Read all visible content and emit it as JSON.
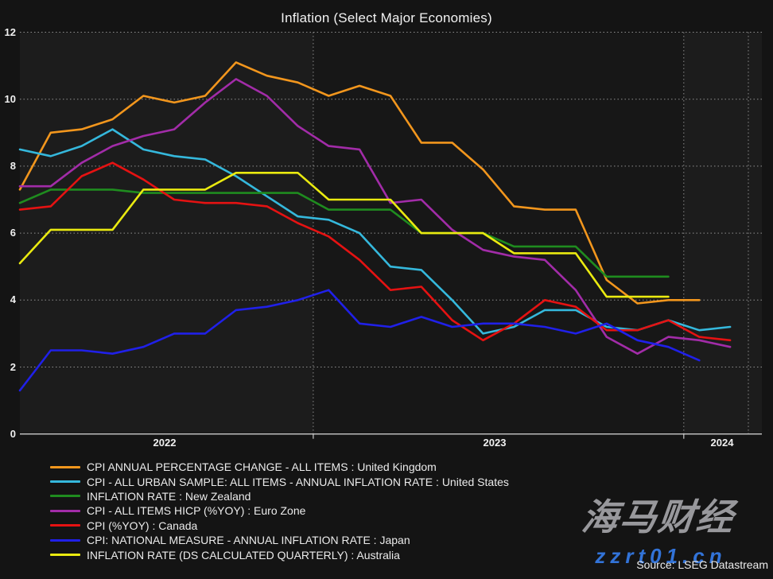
{
  "page": {
    "watermark_brand": "海马财经",
    "watermark_site": "zzrt01.cn",
    "source_note": "Source: LSEG Datastream"
  },
  "chart_data": {
    "type": "line",
    "title": "Inflation (Select Major Economies)",
    "x_start": "2022-03",
    "x_frequency": "monthly",
    "x_tick_labels": [
      "2022",
      "2023",
      "2024"
    ],
    "y_ticks": [
      0,
      2,
      4,
      6,
      8,
      10,
      12
    ],
    "ylim": [
      0,
      12
    ],
    "grid": "dotted",
    "legend_position": "bottom-left",
    "series": [
      {
        "name": "united-kingdom",
        "label": "CPI ANNUAL PERCENTAGE CHANGE - ALL ITEMS : United Kingdom",
        "color": "#F2961D",
        "values": [
          7.3,
          9.0,
          9.1,
          9.4,
          10.1,
          9.9,
          10.1,
          11.1,
          10.7,
          10.5,
          10.1,
          10.4,
          10.1,
          8.7,
          8.7,
          7.9,
          6.8,
          6.7,
          6.7,
          4.6,
          3.9,
          4.0,
          4.0
        ]
      },
      {
        "name": "united-states",
        "label": "CPI - ALL URBAN SAMPLE: ALL ITEMS - ANNUAL INFLATION RATE : United States",
        "color": "#35B8DC",
        "values": [
          8.5,
          8.3,
          8.6,
          9.1,
          8.5,
          8.3,
          8.2,
          7.7,
          7.1,
          6.5,
          6.4,
          6.0,
          5.0,
          4.9,
          4.0,
          3.0,
          3.2,
          3.7,
          3.7,
          3.2,
          3.1,
          3.4,
          3.1,
          3.2
        ]
      },
      {
        "name": "new-zealand",
        "label": "INFLATION RATE : New Zealand",
        "color": "#1F8C1F",
        "values": [
          6.9,
          7.3,
          7.3,
          7.3,
          7.2,
          7.2,
          7.2,
          7.2,
          7.2,
          7.2,
          6.7,
          6.7,
          6.7,
          6.0,
          6.0,
          6.0,
          5.6,
          5.6,
          5.6,
          4.7,
          4.7,
          4.7
        ]
      },
      {
        "name": "euro-zone",
        "label": "CPI - ALL ITEMS HICP (%YOY) : Euro Zone",
        "color": "#A22CA8",
        "values": [
          7.4,
          7.4,
          8.1,
          8.6,
          8.9,
          9.1,
          9.9,
          10.6,
          10.1,
          9.2,
          8.6,
          8.5,
          6.9,
          7.0,
          6.1,
          5.5,
          5.3,
          5.2,
          4.3,
          2.9,
          2.4,
          2.9,
          2.8,
          2.6
        ]
      },
      {
        "name": "canada",
        "label": "CPI (%YOY) : Canada",
        "color": "#E51212",
        "values": [
          6.7,
          6.8,
          7.7,
          8.1,
          7.6,
          7.0,
          6.9,
          6.9,
          6.8,
          6.3,
          5.9,
          5.2,
          4.3,
          4.4,
          3.4,
          2.8,
          3.3,
          4.0,
          3.8,
          3.1,
          3.1,
          3.4,
          2.9,
          2.8
        ]
      },
      {
        "name": "japan",
        "label": "CPI: NATIONAL MEASURE - ANNUAL INFLATION RATE : Japan",
        "color": "#2020E8",
        "values": [
          1.3,
          2.5,
          2.5,
          2.4,
          2.6,
          3.0,
          3.0,
          3.7,
          3.8,
          4.0,
          4.3,
          3.3,
          3.2,
          3.5,
          3.2,
          3.3,
          3.3,
          3.2,
          3.0,
          3.3,
          2.8,
          2.6,
          2.2
        ]
      },
      {
        "name": "australia",
        "label": "INFLATION RATE (DS CALCULATED QUARTERLY) : Australia",
        "color": "#EAEA10",
        "values": [
          5.1,
          6.1,
          6.1,
          6.1,
          7.3,
          7.3,
          7.3,
          7.8,
          7.8,
          7.8,
          7.0,
          7.0,
          7.0,
          6.0,
          6.0,
          6.0,
          5.4,
          5.4,
          5.4,
          4.1,
          4.1,
          4.1
        ]
      }
    ]
  }
}
